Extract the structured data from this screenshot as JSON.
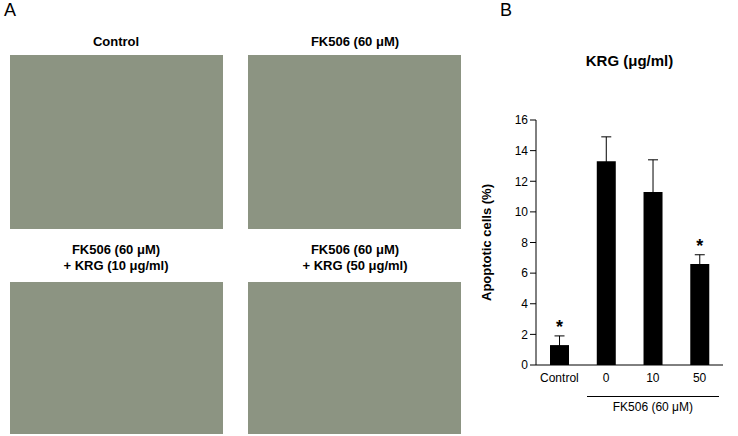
{
  "panel_labels": [
    "A",
    "B"
  ],
  "images": [
    {
      "lines": [
        "Control"
      ]
    },
    {
      "lines": [
        "FK506 (60 μM)"
      ]
    },
    {
      "lines": [
        "FK506 (60 μM)",
        "+ KRG (10 μg/ml)"
      ]
    },
    {
      "lines": [
        "FK506 (60 μM)",
        "+ KRG (50 μg/ml)"
      ]
    }
  ],
  "chart_data": {
    "type": "bar",
    "title": "KRG (μg/ml)",
    "y_label": "Apoptotic cells (%)",
    "categories": [
      "Control",
      "0",
      "10",
      "50"
    ],
    "group_label": "FK506 (60 μM)",
    "values": [
      1.3,
      13.3,
      11.3,
      6.6
    ],
    "errors": [
      0.6,
      1.6,
      2.1,
      0.6
    ],
    "annotations": [
      "*",
      null,
      null,
      "*"
    ],
    "color": "#000000",
    "ylim": [
      0,
      16
    ],
    "yticks": [
      0,
      2,
      4,
      6,
      8,
      10,
      12,
      14,
      16
    ],
    "grid": false
  }
}
